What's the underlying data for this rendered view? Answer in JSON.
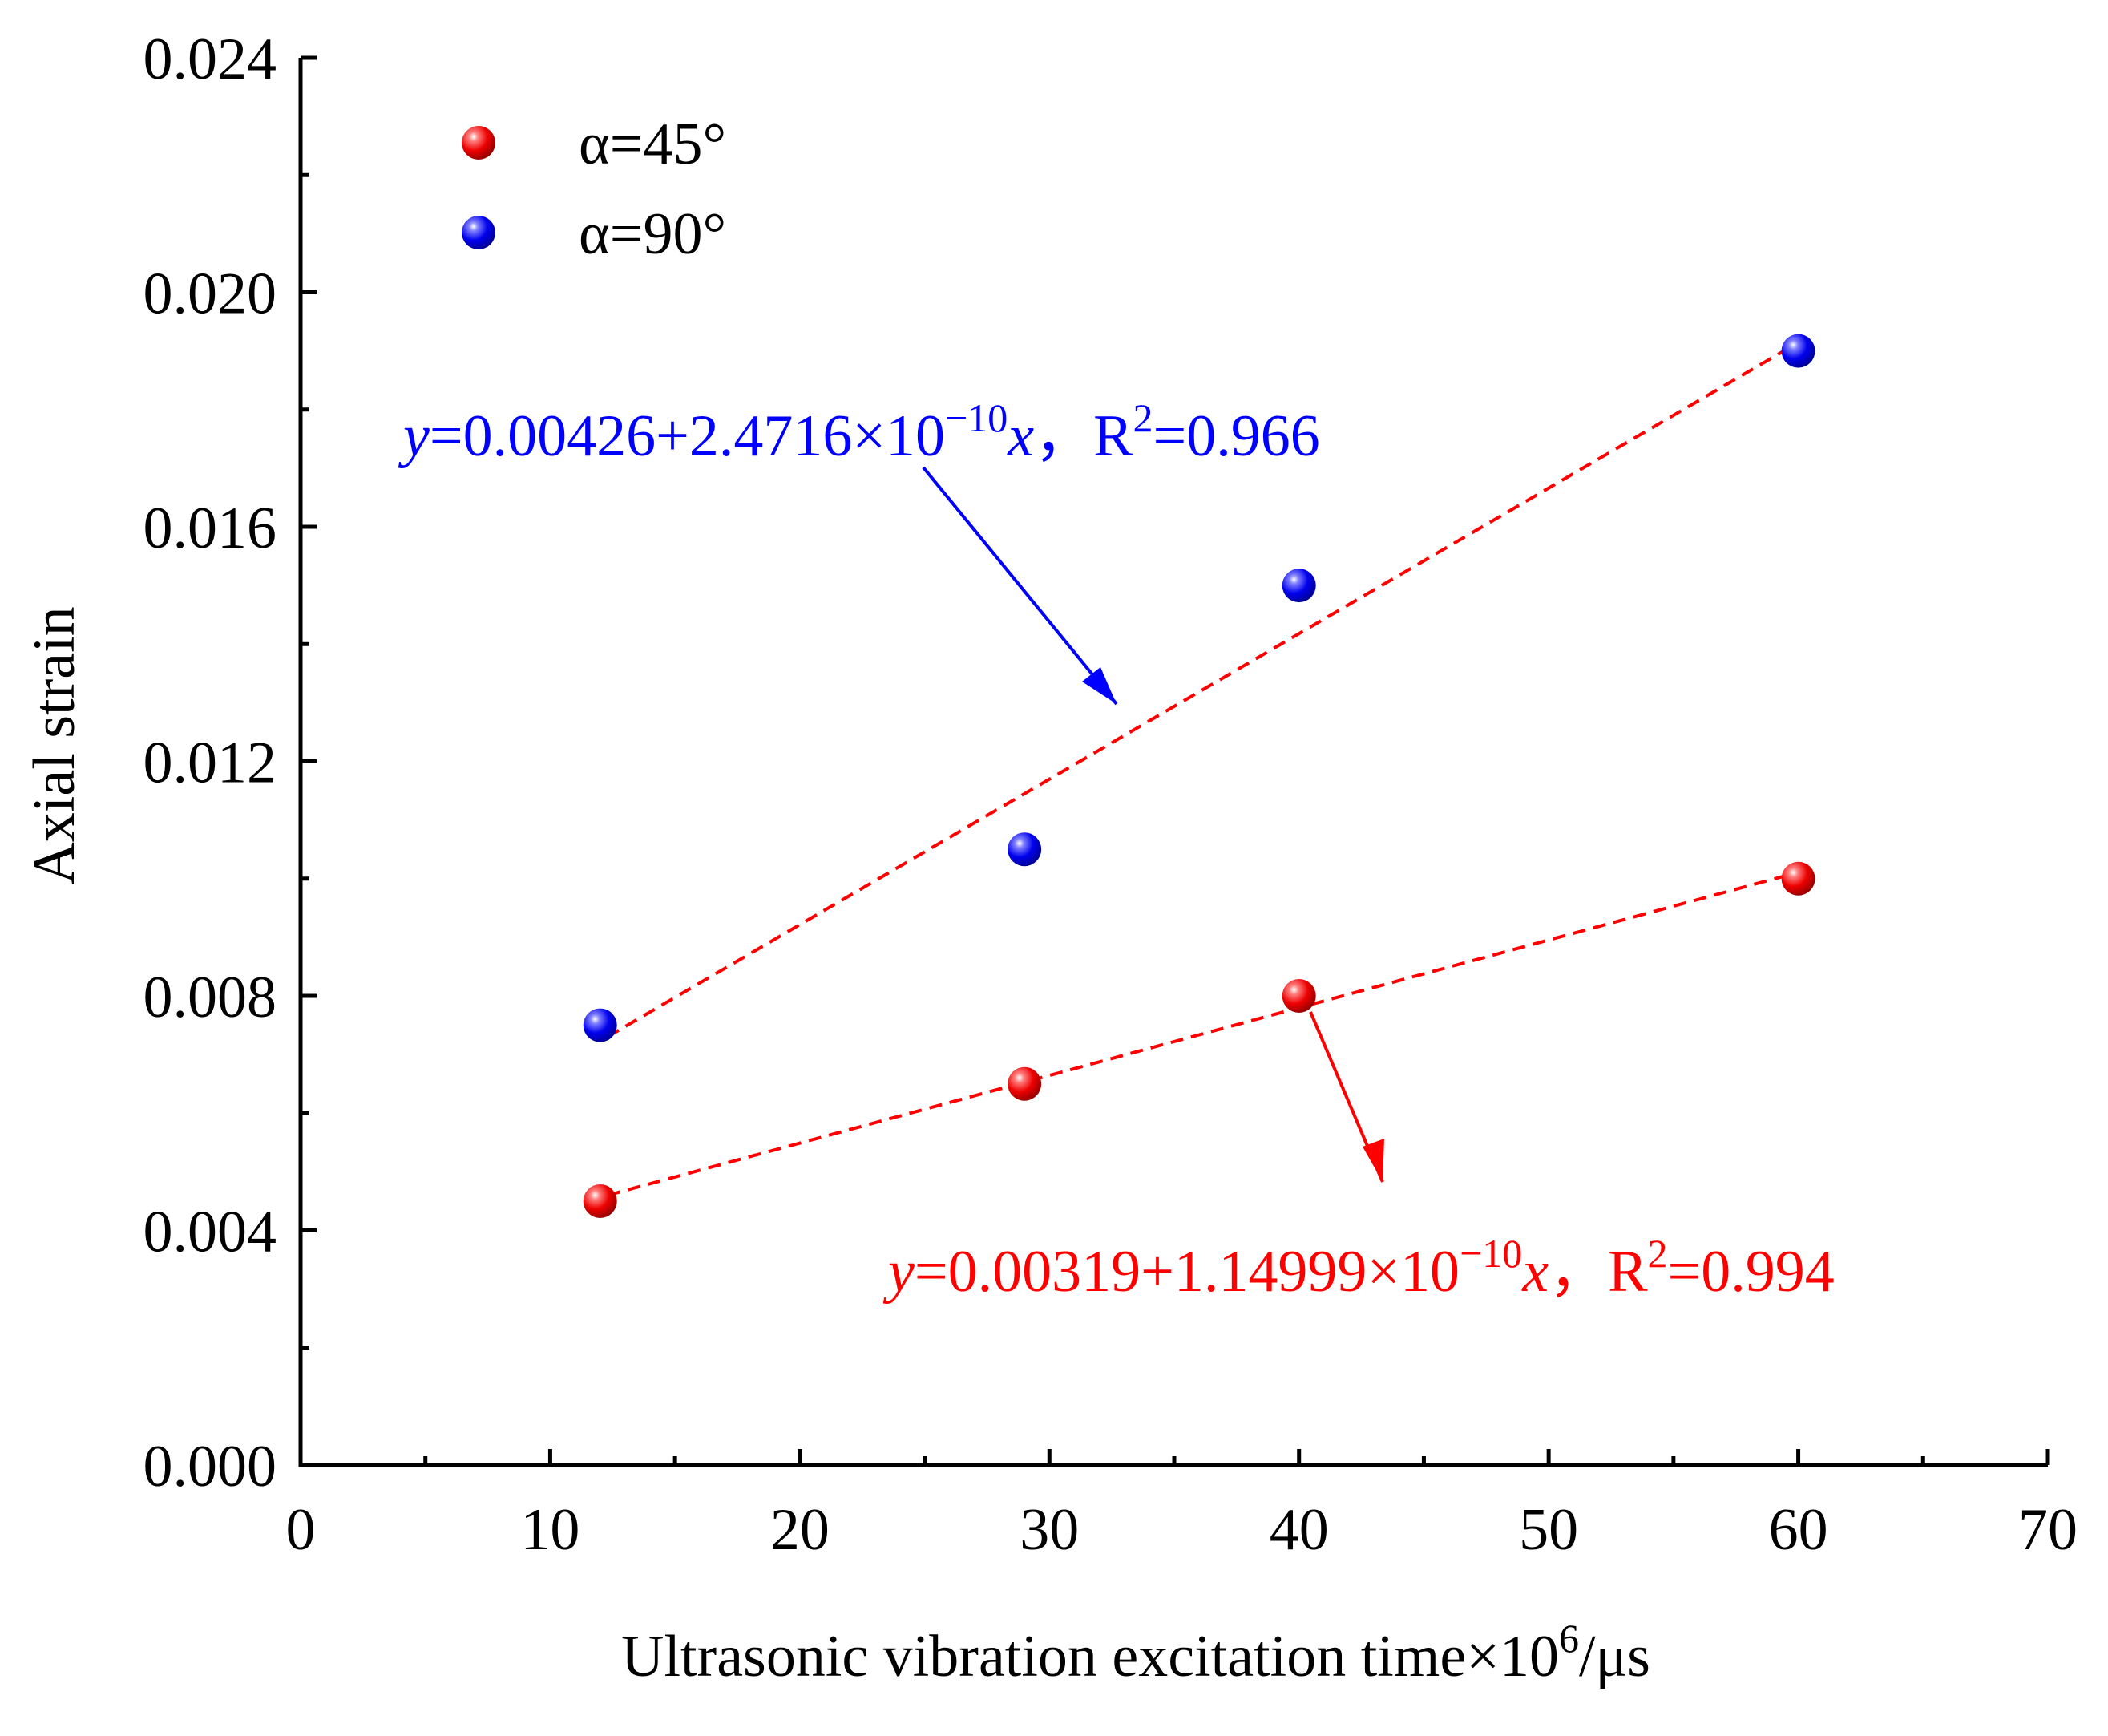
{
  "chart_data": {
    "type": "scatter",
    "xlabel": "Ultrasonic vibration excitation time×10",
    "xlabel_sup": "6",
    "xlabel_suffix": "/μs",
    "ylabel": "Axial strain",
    "xlim": [
      0,
      70
    ],
    "ylim": [
      0,
      0.024
    ],
    "x_ticks": [
      0,
      10,
      20,
      30,
      40,
      50,
      60,
      70
    ],
    "y_ticks": [
      0,
      0.004,
      0.008,
      0.012,
      0.016,
      0.02,
      0.024
    ],
    "x_tick_labels": [
      "0",
      "10",
      "20",
      "30",
      "40",
      "50",
      "60",
      "70"
    ],
    "y_tick_labels": [
      "0.000",
      "0.004",
      "0.008",
      "0.012",
      "0.016",
      "0.020",
      "0.024"
    ],
    "legend_position": "top-left",
    "series": [
      {
        "name": "α=45°",
        "color": "#ff0000",
        "x": [
          12,
          29,
          40,
          60
        ],
        "y": [
          0.0045,
          0.0065,
          0.008,
          0.01
        ],
        "fit": {
          "intercept": 0.00319,
          "slope": 1.14999e-10,
          "r2": 0.994
        }
      },
      {
        "name": "α=90°",
        "color": "#0000ff",
        "x": [
          12,
          29,
          40,
          60
        ],
        "y": [
          0.0075,
          0.0105,
          0.015,
          0.019
        ],
        "fit": {
          "intercept": 0.00426,
          "slope": 2.4716e-10,
          "r2": 0.966
        }
      }
    ],
    "annotations": [
      {
        "series": "α=90°",
        "color": "#0000ff",
        "y_var": "y",
        "eq_main": "=0.00426+2.4716×10",
        "eq_exp": "−10",
        "x_var": "x",
        "sep": "，",
        "r_label": "R",
        "r_sup": "2",
        "r_value": "=0.966"
      },
      {
        "series": "α=45°",
        "color": "#ff0000",
        "y_var": "y",
        "eq_main": "=0.00319+1.14999×10",
        "eq_exp": "−10",
        "x_var": "x",
        "sep": "，",
        "r_label": "R",
        "r_sup": "2",
        "r_value": "=0.994"
      }
    ],
    "fit_line_color": "#ff0000"
  }
}
